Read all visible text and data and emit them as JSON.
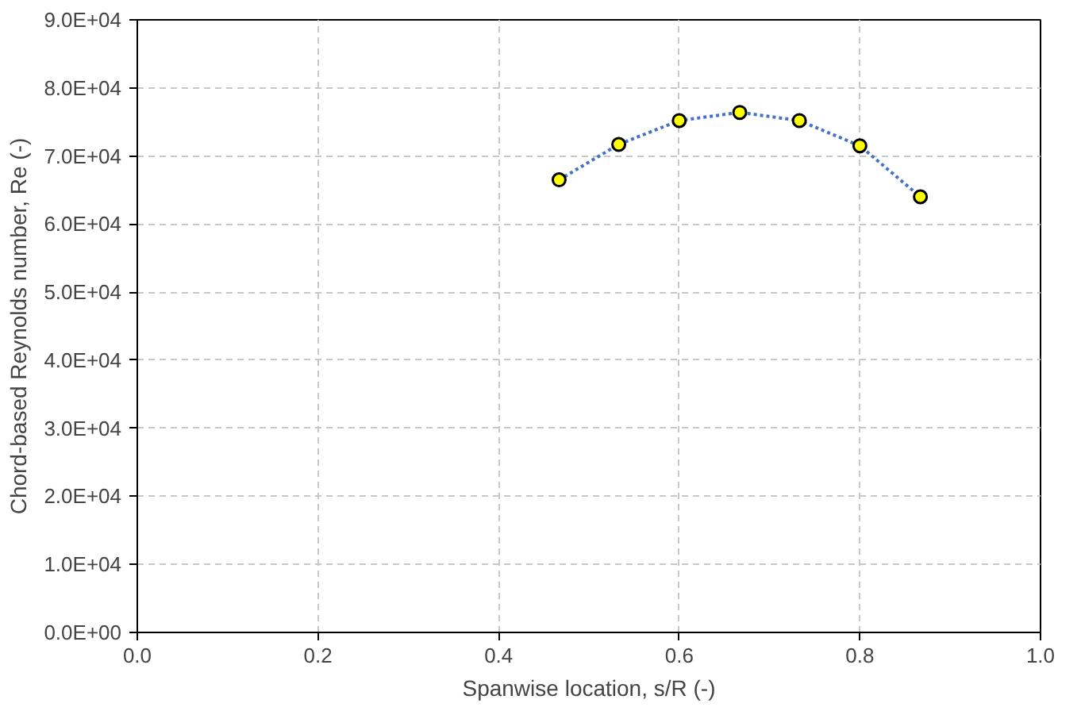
{
  "chart_data": {
    "type": "scatter",
    "xlabel": "Spanwise location, s/R (-)",
    "ylabel": "Chord-based Reynolds number, Re (-)",
    "xlim": [
      0,
      1
    ],
    "xticks": [
      {
        "value": 0,
        "label": "0.0"
      },
      {
        "value": 0.2,
        "label": "0.2"
      },
      {
        "value": 0.4,
        "label": "0.4"
      },
      {
        "value": 0.6,
        "label": "0.6"
      },
      {
        "value": 0.8,
        "label": "0.8"
      },
      {
        "value": 1,
        "label": "1.0"
      }
    ],
    "ylim": [
      0,
      90000
    ],
    "yticks": [
      {
        "value": 0,
        "label": "0.0E+00"
      },
      {
        "value": 10000,
        "label": "1.0E+04"
      },
      {
        "value": 20000,
        "label": "2.0E+04"
      },
      {
        "value": 30000,
        "label": "3.0E+04"
      },
      {
        "value": 40000,
        "label": "4.0E+04"
      },
      {
        "value": 50000,
        "label": "5.0E+04"
      },
      {
        "value": 60000,
        "label": "6.0E+04"
      },
      {
        "value": 70000,
        "label": "7.0E+04"
      },
      {
        "value": 80000,
        "label": "8.0E+04"
      },
      {
        "value": 90000,
        "label": "9.0E+04"
      }
    ],
    "grid": true,
    "series": [
      {
        "type": "line",
        "line_style": "dotted",
        "marker": "none",
        "color": "#4472c4",
        "x": [
          0.467,
          0.533,
          0.6,
          0.667,
          0.733,
          0.8,
          0.867
        ],
        "values": [
          66500,
          71700,
          75200,
          76400,
          75200,
          71500,
          64000
        ]
      },
      {
        "marker": "circle",
        "color": "#ffff00",
        "x": [
          0.467,
          0.533,
          0.6,
          0.667,
          0.733,
          0.8,
          0.867
        ],
        "values": [
          66500,
          71700,
          75200,
          76400,
          75200,
          71500,
          64000
        ]
      }
    ]
  }
}
